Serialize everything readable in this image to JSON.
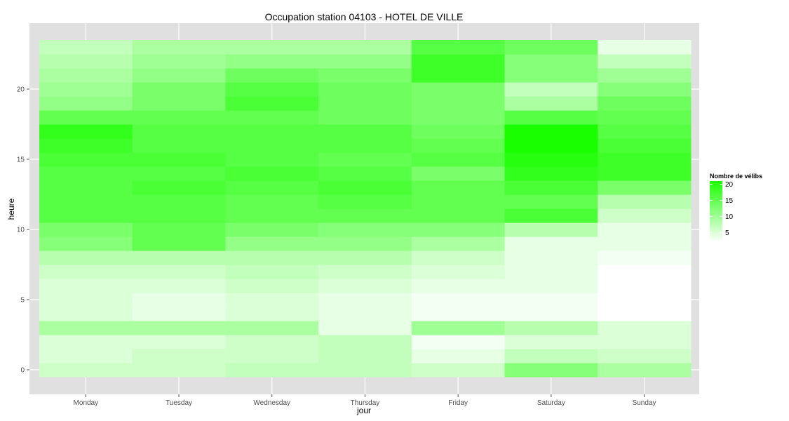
{
  "chart_data": {
    "type": "heatmap",
    "title": "Occupation station 04103 - HOTEL DE VILLE",
    "xlabel": "jour",
    "ylabel": "heure",
    "x_categories": [
      "Monday",
      "Tuesday",
      "Wednesday",
      "Thursday",
      "Friday",
      "Saturday",
      "Sunday"
    ],
    "y_categories": [
      0,
      1,
      2,
      3,
      4,
      5,
      6,
      7,
      8,
      9,
      10,
      11,
      12,
      13,
      14,
      15,
      16,
      17,
      18,
      19,
      20,
      21,
      22,
      23
    ],
    "y_ticks": [
      0,
      5,
      10,
      15,
      20
    ],
    "ylim": [
      -0.5,
      23.5
    ],
    "values": [
      [
        6,
        6,
        7,
        7,
        6,
        12,
        9
      ],
      [
        5,
        6,
        6,
        7,
        4,
        7,
        6
      ],
      [
        5,
        5,
        6,
        7,
        3,
        5,
        5
      ],
      [
        9,
        9,
        9,
        4,
        10,
        8,
        5
      ],
      [
        5,
        4,
        5,
        4,
        3,
        3,
        2
      ],
      [
        5,
        4,
        5,
        4,
        3,
        3,
        2
      ],
      [
        5,
        5,
        6,
        5,
        4,
        4,
        2
      ],
      [
        6,
        6,
        7,
        6,
        5,
        4,
        2
      ],
      [
        8,
        8,
        8,
        8,
        6,
        4,
        3
      ],
      [
        12,
        15,
        11,
        11,
        9,
        4,
        4
      ],
      [
        13,
        15,
        13,
        12,
        12,
        8,
        4
      ],
      [
        16,
        16,
        15,
        15,
        15,
        17,
        6
      ],
      [
        16,
        16,
        15,
        16,
        15,
        15,
        8
      ],
      [
        16,
        17,
        16,
        17,
        15,
        17,
        13
      ],
      [
        16,
        16,
        17,
        16,
        13,
        19,
        18
      ],
      [
        17,
        17,
        16,
        15,
        16,
        20,
        18
      ],
      [
        18,
        16,
        16,
        16,
        15,
        21,
        17
      ],
      [
        19,
        16,
        16,
        16,
        14,
        21,
        16
      ],
      [
        15,
        15,
        15,
        14,
        13,
        16,
        15
      ],
      [
        11,
        13,
        17,
        14,
        13,
        9,
        14
      ],
      [
        10,
        13,
        16,
        14,
        13,
        7,
        12
      ],
      [
        9,
        11,
        14,
        13,
        18,
        12,
        10
      ],
      [
        8,
        10,
        11,
        11,
        18,
        12,
        7
      ],
      [
        7,
        9,
        9,
        9,
        16,
        14,
        4
      ]
    ],
    "legend": {
      "title": "Nombre de vélibs",
      "ticks": [
        5,
        10,
        15,
        20
      ],
      "range": [
        2,
        21
      ],
      "low_color": "#ffffff",
      "high_color": "#1aff00",
      "placement": "right"
    },
    "panel_color": "#e0e0e0",
    "grid": true
  }
}
